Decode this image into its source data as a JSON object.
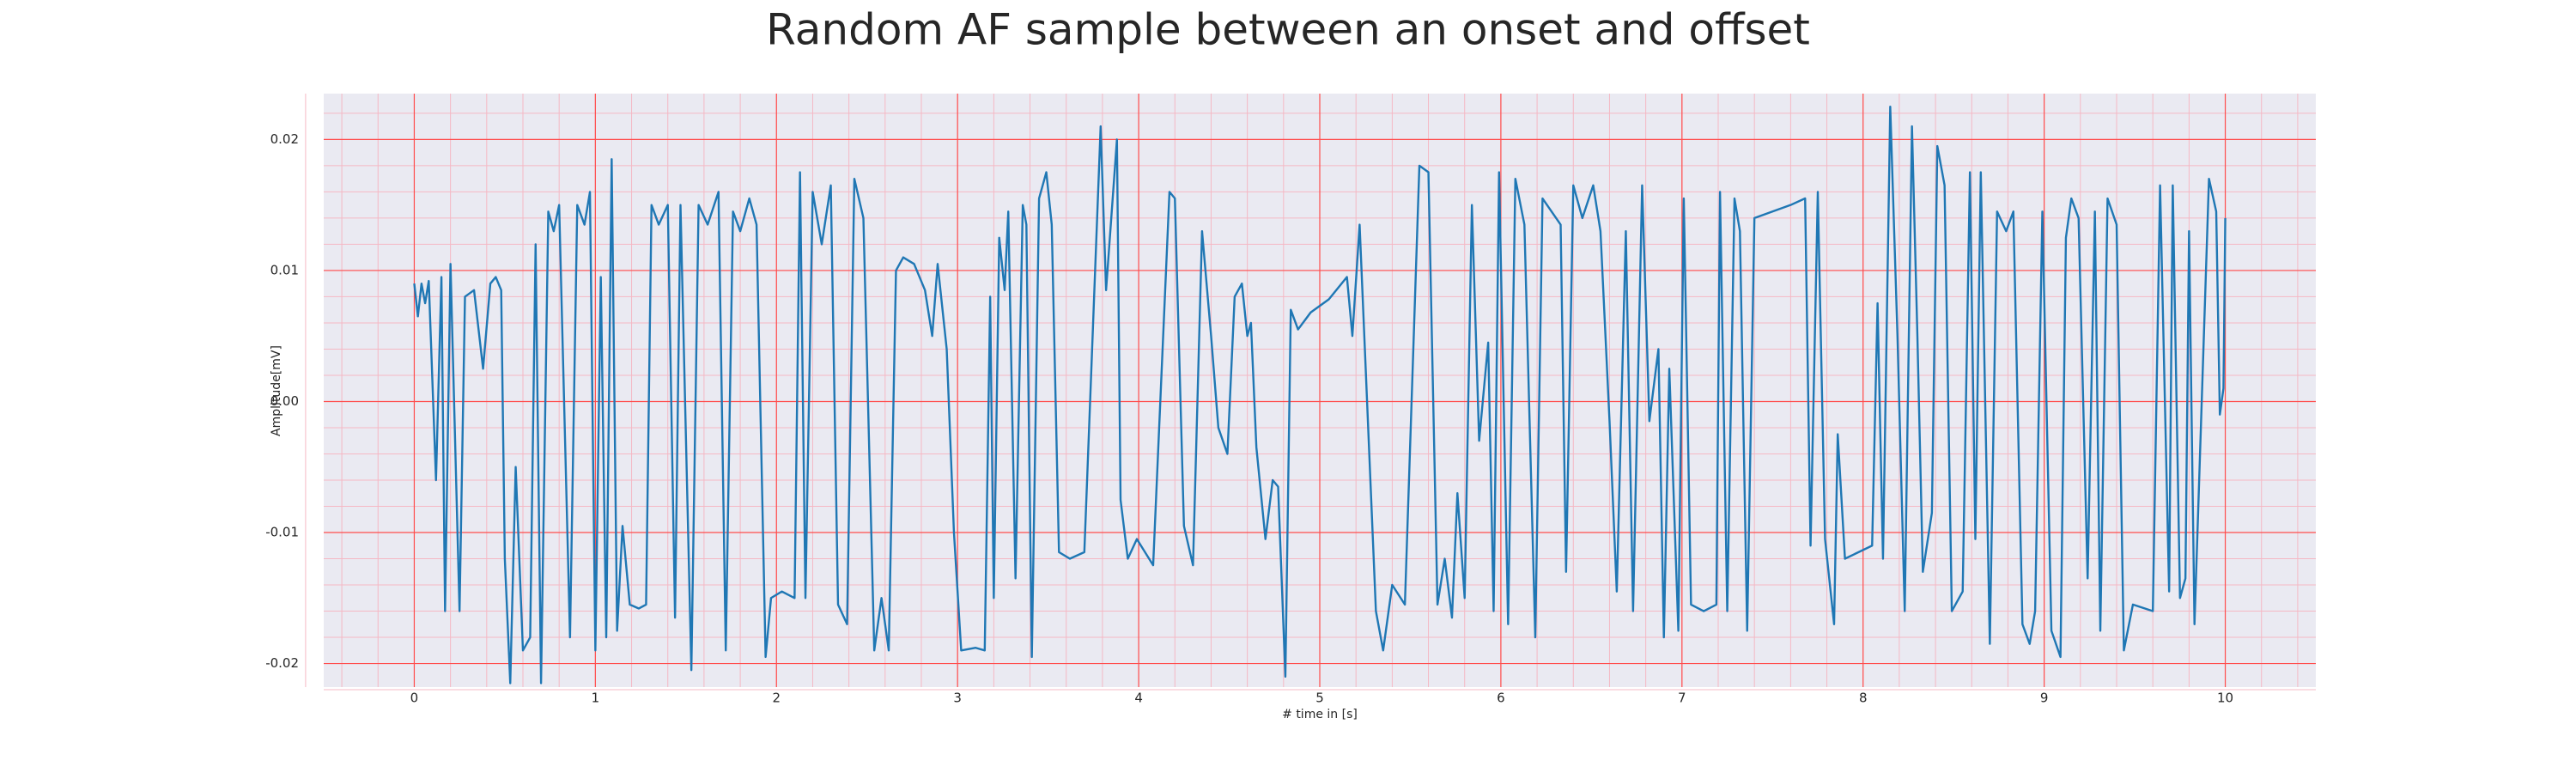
{
  "chart_data": {
    "type": "line",
    "title": "Random AF sample between an onset and offset",
    "xlabel": "# time in [s]",
    "ylabel": "Amplitude[mV]",
    "xlim": [
      -0.5,
      10.5
    ],
    "ylim": [
      -0.0218,
      0.0235
    ],
    "xticks": [
      0,
      1,
      2,
      3,
      4,
      5,
      6,
      7,
      8,
      9,
      10
    ],
    "yticks": [
      -0.02,
      -0.01,
      {
        "value": 0,
        "label": "0.00"
      },
      0.01,
      0.02
    ],
    "grid": true,
    "minor_grid": true,
    "background": "#eaeaf2",
    "grid_color": "#ff4d4d",
    "minor_grid_color": "#f5b8c4",
    "series": [
      {
        "color": "#1f77b4",
        "x": [
          0,
          0.02,
          0.04,
          0.06,
          0.08,
          0.12,
          0.15,
          0.17,
          0.2,
          0.25,
          0.28,
          0.33,
          0.38,
          0.42,
          0.45,
          0.48,
          0.5,
          0.53,
          0.56,
          0.6,
          0.64,
          0.67,
          0.7,
          0.74,
          0.77,
          0.8,
          0.86,
          0.9,
          0.94,
          0.97,
          1.0,
          1.03,
          1.06,
          1.09,
          1.12,
          1.15,
          1.19,
          1.24,
          1.28,
          1.31,
          1.35,
          1.4,
          1.44,
          1.47,
          1.53,
          1.57,
          1.62,
          1.68,
          1.72,
          1.76,
          1.8,
          1.85,
          1.89,
          1.94,
          1.97,
          2.03,
          2.1,
          2.13,
          2.16,
          2.2,
          2.25,
          2.3,
          2.34,
          2.39,
          2.43,
          2.48,
          2.54,
          2.58,
          2.62,
          2.66,
          2.7,
          2.76,
          2.82,
          2.86,
          2.89,
          2.94,
          2.98,
          3.02,
          3.1,
          3.15,
          3.18,
          3.2,
          3.23,
          3.26,
          3.28,
          3.32,
          3.36,
          3.38,
          3.41,
          3.45,
          3.49,
          3.52,
          3.56,
          3.62,
          3.7,
          3.79,
          3.82,
          3.88,
          3.9,
          3.94,
          3.99,
          4.08,
          4.17,
          4.2,
          4.25,
          4.3,
          4.35,
          4.4,
          4.44,
          4.49,
          4.53,
          4.57,
          4.6,
          4.62,
          4.65,
          4.7,
          4.74,
          4.77,
          4.81,
          4.84,
          4.88,
          4.95,
          5.05,
          5.15,
          5.18,
          5.22,
          5.31,
          5.35,
          5.4,
          5.47,
          5.55,
          5.6,
          5.65,
          5.69,
          5.73,
          5.76,
          5.8,
          5.84,
          5.88,
          5.93,
          5.96,
          5.99,
          6.04,
          6.08,
          6.13,
          6.19,
          6.23,
          6.28,
          6.33,
          6.36,
          6.4,
          6.45,
          6.51,
          6.55,
          6.6,
          6.64,
          6.69,
          6.73,
          6.78,
          6.82,
          6.87,
          6.9,
          6.93,
          6.98,
          7.01,
          7.05,
          7.12,
          7.19,
          7.21,
          7.25,
          7.29,
          7.32,
          7.36,
          7.4,
          7.5,
          7.6,
          7.68,
          7.71,
          7.75,
          7.79,
          7.84,
          7.86,
          7.9,
          8.05,
          8.08,
          8.11,
          8.15,
          8.19,
          8.23,
          8.27,
          8.3,
          8.33,
          8.38,
          8.41,
          8.45,
          8.49,
          8.55,
          8.59,
          8.62,
          8.65,
          8.7,
          8.74,
          8.79,
          8.83,
          8.88,
          8.92,
          8.95,
          8.99,
          9.04,
          9.09,
          9.12,
          9.15,
          9.19,
          9.24,
          9.28,
          9.31,
          9.35,
          9.4,
          9.44,
          9.49,
          9.6,
          9.64,
          9.69,
          9.71,
          9.75,
          9.78,
          9.8,
          9.83,
          9.91,
          9.95,
          9.97,
          9.99,
          10.0
        ],
        "values": [
          0.009,
          0.0065,
          0.009,
          0.0075,
          0.0092,
          -0.006,
          0.0095,
          -0.016,
          0.0105,
          -0.016,
          0.008,
          0.0085,
          0.0025,
          0.009,
          0.0095,
          0.0085,
          -0.012,
          -0.0215,
          -0.005,
          -0.019,
          -0.018,
          0.012,
          -0.0215,
          0.0145,
          0.013,
          0.015,
          -0.018,
          0.015,
          0.0135,
          0.016,
          -0.019,
          0.0095,
          -0.018,
          0.0185,
          -0.0175,
          -0.0095,
          -0.0155,
          -0.0158,
          -0.0155,
          0.015,
          0.0135,
          0.015,
          -0.0165,
          0.015,
          -0.0205,
          0.015,
          0.0135,
          0.016,
          -0.019,
          0.0145,
          0.013,
          0.0155,
          0.0135,
          -0.0195,
          -0.015,
          -0.0145,
          -0.015,
          0.0175,
          -0.015,
          0.016,
          0.012,
          0.0165,
          -0.0155,
          -0.017,
          0.017,
          0.014,
          -0.019,
          -0.015,
          -0.019,
          0.01,
          0.011,
          0.0105,
          0.0085,
          0.005,
          0.0105,
          0.004,
          -0.01,
          -0.019,
          -0.0188,
          -0.019,
          0.008,
          -0.015,
          0.0125,
          0.0085,
          0.0145,
          -0.0135,
          0.015,
          0.0135,
          -0.0195,
          0.0155,
          0.0175,
          0.0135,
          -0.0115,
          -0.012,
          -0.0115,
          0.021,
          0.0085,
          0.02,
          -0.0075,
          -0.012,
          -0.0105,
          -0.0125,
          0.016,
          0.0155,
          -0.0095,
          -0.0125,
          0.013,
          0.005,
          -0.002,
          -0.004,
          0.008,
          0.009,
          0.005,
          0.006,
          -0.0035,
          -0.0105,
          -0.006,
          -0.0065,
          -0.021,
          0.007,
          0.0055,
          0.0068,
          0.0078,
          0.0095,
          0.005,
          0.0135,
          -0.016,
          -0.019,
          -0.014,
          -0.0155,
          0.018,
          0.0175,
          -0.0155,
          -0.012,
          -0.0165,
          -0.007,
          -0.015,
          0.015,
          -0.003,
          0.0045,
          -0.016,
          0.0175,
          -0.017,
          0.017,
          0.0135,
          -0.018,
          0.0155,
          0.0145,
          0.0135,
          -0.013,
          0.0165,
          0.014,
          0.0165,
          0.013,
          -0.0015,
          -0.0145,
          0.013,
          -0.016,
          0.0165,
          -0.0015,
          0.004,
          -0.018,
          0.0025,
          -0.0175,
          0.0155,
          -0.0155,
          -0.016,
          -0.0155,
          0.016,
          -0.016,
          0.0155,
          0.013,
          -0.0175,
          0.014,
          0.0145,
          0.015,
          0.0155,
          -0.011,
          0.016,
          -0.0105,
          -0.017,
          -0.0025,
          -0.012,
          -0.011,
          0.0075,
          -0.012,
          0.0225,
          0.005,
          -0.016,
          0.021,
          0.005,
          -0.013,
          -0.0085,
          0.0195,
          0.0165,
          -0.016,
          -0.0145,
          0.0175,
          -0.0105,
          0.0175,
          -0.0185,
          0.0145,
          0.013,
          0.0145,
          -0.017,
          -0.0185,
          -0.016,
          0.0145,
          -0.0175,
          -0.0195,
          0.0125,
          0.0155,
          0.014,
          -0.0135,
          0.0145,
          -0.0175,
          0.0155,
          0.0135,
          -0.019,
          -0.0155,
          -0.016,
          0.0165,
          -0.0145,
          0.0165,
          -0.015,
          -0.0135,
          0.013,
          -0.017,
          0.017,
          0.0145,
          -0.001,
          0.001,
          0.014
        ]
      }
    ]
  }
}
